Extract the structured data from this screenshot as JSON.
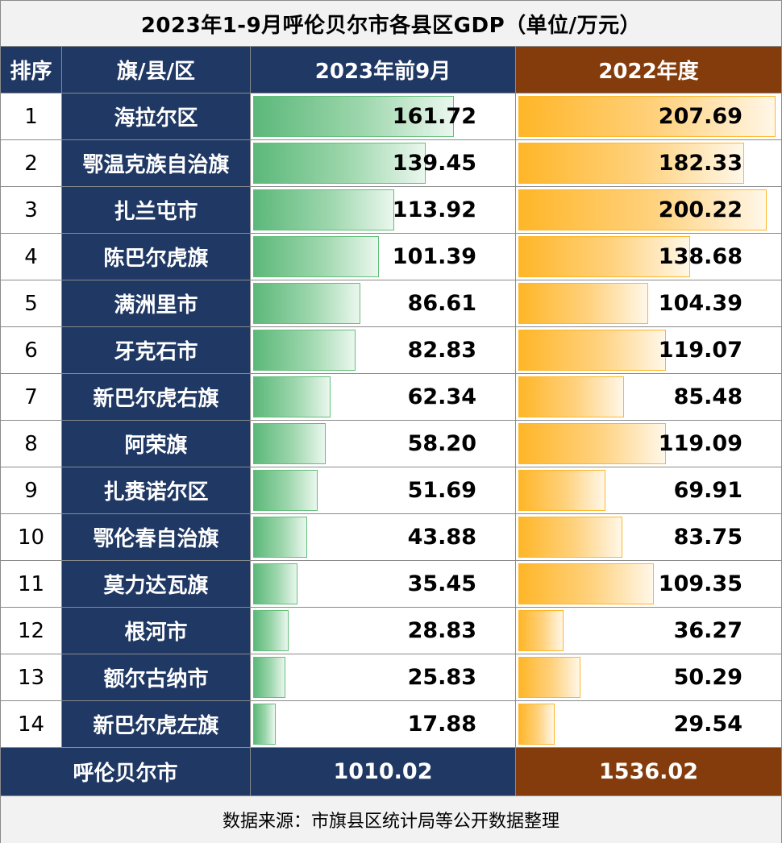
{
  "title": "2023年1-9月呼伦贝尔市各县区GDP（单位/万元）",
  "colors": {
    "navy": "#1f3864",
    "brown": "#843c0c",
    "bar_green": "#63be7b",
    "bar_orange": "#ffb628"
  },
  "chart_data": {
    "type": "table",
    "headers": {
      "rank": "排序",
      "region": "旗/县/区",
      "col2023": "2023年前9月",
      "col2022": "2022年度"
    },
    "x_max": 210,
    "rows": [
      {
        "rank": "1",
        "name": "海拉尔区",
        "v2023": "161.72",
        "v2022": "207.69"
      },
      {
        "rank": "2",
        "name": "鄂温克族自治旗",
        "v2023": "139.45",
        "v2022": "182.33"
      },
      {
        "rank": "3",
        "name": "扎兰屯市",
        "v2023": "113.92",
        "v2022": "200.22"
      },
      {
        "rank": "4",
        "name": "陈巴尔虎旗",
        "v2023": "101.39",
        "v2022": "138.68"
      },
      {
        "rank": "5",
        "name": "满洲里市",
        "v2023": "86.61",
        "v2022": "104.39"
      },
      {
        "rank": "6",
        "name": "牙克石市",
        "v2023": "82.83",
        "v2022": "119.07"
      },
      {
        "rank": "7",
        "name": "新巴尔虎右旗",
        "v2023": "62.34",
        "v2022": "85.48"
      },
      {
        "rank": "8",
        "name": "阿荣旗",
        "v2023": "58.20",
        "v2022": "119.09"
      },
      {
        "rank": "9",
        "name": "扎赉诺尔区",
        "v2023": "51.69",
        "v2022": "69.91"
      },
      {
        "rank": "10",
        "name": "鄂伦春自治旗",
        "v2023": "43.88",
        "v2022": "83.75"
      },
      {
        "rank": "11",
        "name": "莫力达瓦旗",
        "v2023": "35.45",
        "v2022": "109.35"
      },
      {
        "rank": "12",
        "name": "根河市",
        "v2023": "28.83",
        "v2022": "36.27"
      },
      {
        "rank": "13",
        "name": "额尔古纳市",
        "v2023": "25.83",
        "v2022": "50.29"
      },
      {
        "rank": "14",
        "name": "新巴尔虎左旗",
        "v2023": "17.88",
        "v2022": "29.54"
      }
    ],
    "total": {
      "name": "呼伦贝尔市",
      "v2023": "1010.02",
      "v2022": "1536.02"
    }
  },
  "footer": "数据来源：市旗县区统计局等公开数据整理"
}
